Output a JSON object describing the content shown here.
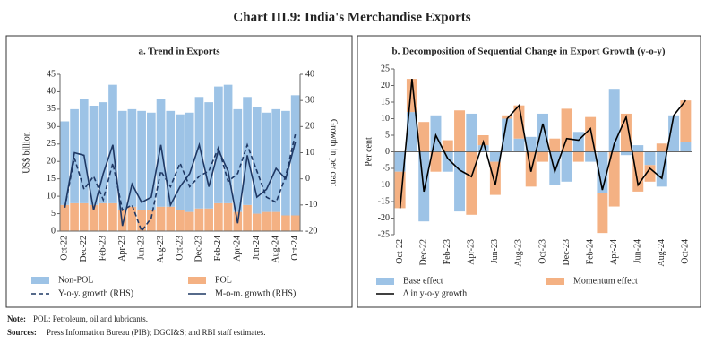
{
  "title": "Chart III.9: India's Merchandise Exports",
  "notes": [
    {
      "label": "Note:",
      "text": "POL: Petroleum, oil and lubricants."
    },
    {
      "label": "Sources:",
      "text": "Press Information Bureau (PIB); DGCI&S; and RBI staff estimates."
    }
  ],
  "chart_data": [
    {
      "type": "bar",
      "title": "a. Trend in Exports",
      "ylabel": "US$ billion",
      "y2label": "Growth in per cent",
      "categories": [
        "Oct-22",
        null,
        "Dec-22",
        null,
        "Feb-23",
        null,
        "Apr-23",
        null,
        "Jun-23",
        null,
        "Aug-23",
        null,
        "Oct-23",
        null,
        "Dec-23",
        null,
        "Feb-24",
        null,
        "Apr-24",
        null,
        "Jun-24",
        null,
        "Aug-24",
        null,
        "Oct-24"
      ],
      "ylim": [
        0,
        45
      ],
      "yticks": [
        0,
        5,
        10,
        15,
        20,
        25,
        30,
        35,
        40,
        45
      ],
      "y2lim": [
        -20,
        40
      ],
      "y2ticks": [
        -20,
        -10,
        0,
        10,
        20,
        30,
        40
      ],
      "series": [
        {
          "name": "POL",
          "type": "bar",
          "color": "#f4b183",
          "values": [
            7.5,
            8,
            8,
            7.5,
            8,
            8,
            6,
            7,
            6,
            6,
            7,
            7,
            6,
            5.5,
            6.5,
            6.5,
            8,
            8,
            5.5,
            7.5,
            5,
            5.5,
            5.5,
            4.5,
            4.5
          ]
        },
        {
          "name": "Non-POL",
          "type": "bar",
          "color": "#9dc3e6",
          "values": [
            24,
            27,
            30,
            28.5,
            29,
            34,
            28.5,
            28,
            28.5,
            28,
            31,
            27.5,
            27.5,
            28.5,
            32,
            30.5,
            33.5,
            34,
            29.5,
            31,
            30.5,
            28.5,
            29.5,
            30,
            34.5
          ]
        },
        {
          "name": "Y-o-y. growth (RHS)",
          "type": "line",
          "dashed": true,
          "axis": "y2",
          "color": "#1f3864",
          "values": [
            -11,
            8,
            -4,
            1,
            -8,
            6,
            -12,
            -10,
            -20,
            -15,
            3,
            -3,
            6,
            -3,
            1,
            3,
            12,
            -1,
            2,
            13,
            3,
            -7,
            -9,
            1,
            17
          ]
        },
        {
          "name": "M-o-m. growth (RHS)",
          "type": "line",
          "axis": "y2",
          "color": "#1f3864",
          "values": [
            -11,
            10,
            9,
            -12,
            2,
            13,
            -18,
            -2,
            -9,
            -7,
            13,
            -10,
            -3,
            2,
            13,
            -3,
            11,
            3,
            -17,
            9,
            -7,
            -4,
            4,
            0,
            14
          ]
        }
      ]
    },
    {
      "type": "bar",
      "title": "b. Decomposition of Sequential Change in Export Growth (y-o-y)",
      "ylabel": "Per cent",
      "categories": [
        "Oct-22",
        null,
        "Dec-22",
        null,
        "Feb-23",
        null,
        "Apr-23",
        null,
        "Jun-23",
        null,
        "Aug-23",
        null,
        "Oct-23",
        null,
        "Dec-23",
        null,
        "Feb-24",
        null,
        "Apr-24",
        null,
        "Jun-24",
        null,
        "Aug-24",
        null,
        "Oct-24"
      ],
      "ylim": [
        -25,
        25
      ],
      "yticks": [
        -25,
        -20,
        -15,
        -10,
        -5,
        0,
        5,
        10,
        15,
        20,
        25
      ],
      "series": [
        {
          "name": "Base effect",
          "type": "bar",
          "color": "#9dc3e6",
          "values": [
            -6,
            12,
            -21,
            11,
            -6,
            -18,
            11.5,
            2,
            -3,
            10,
            4,
            4.5,
            11.5,
            -10,
            -9,
            6,
            -3,
            -12.5,
            19,
            -1,
            2,
            -4,
            -10.5,
            11,
            3
          ]
        },
        {
          "name": "Momentum effect",
          "type": "bar",
          "color": "#f4b183",
          "values": [
            -11,
            10,
            9,
            -6,
            3.5,
            12.5,
            -19,
            3,
            -10,
            1,
            10,
            -10.5,
            -3,
            4,
            13,
            -3,
            10.5,
            -12,
            -16.5,
            11.5,
            -12,
            -5,
            2.5,
            0,
            12.5
          ]
        },
        {
          "name": "Δ in y-o-y growth",
          "type": "line",
          "color": "#000000",
          "values": [
            -17,
            22,
            -12,
            5,
            -2,
            -5.5,
            -7.5,
            3,
            -10,
            10,
            14,
            -6,
            8.5,
            -6,
            4,
            3.5,
            7,
            -11.5,
            2.5,
            10.5,
            -10,
            -5,
            -8,
            11,
            15.5
          ]
        }
      ]
    }
  ]
}
